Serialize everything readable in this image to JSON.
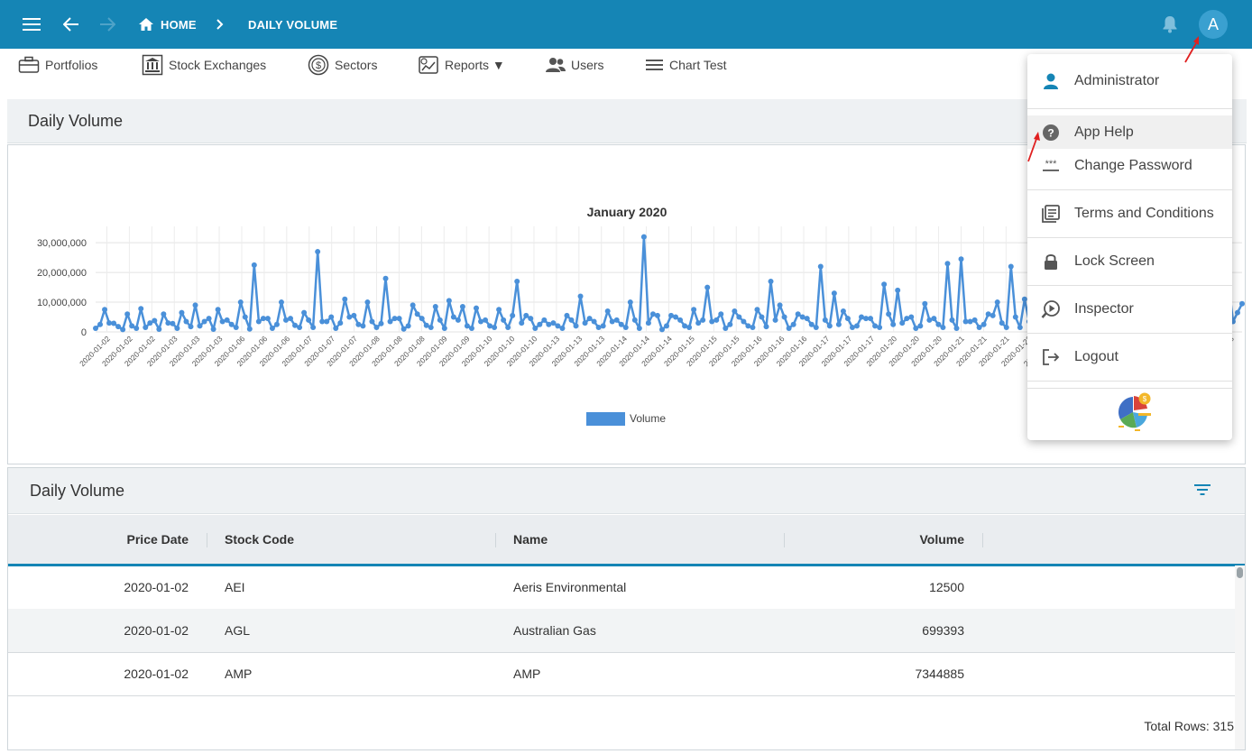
{
  "topbar": {
    "home_label": "HOME",
    "page_label": "DAILY VOLUME",
    "avatar_letter": "A",
    "color": "#1585b5"
  },
  "nav": {
    "items": [
      {
        "label": "Portfolios",
        "icon": "briefcase-icon"
      },
      {
        "label": "Stock Exchanges",
        "icon": "bank-icon"
      },
      {
        "label": "Sectors",
        "icon": "dollar-circle-icon"
      },
      {
        "label": "Reports ▼",
        "icon": "report-chart-icon"
      },
      {
        "label": "Users",
        "icon": "users-icon"
      },
      {
        "label": "Chart Test",
        "icon": "lines-icon"
      }
    ]
  },
  "chart_panel": {
    "title": "Daily Volume"
  },
  "chart_data": {
    "type": "line",
    "title": "January 2020",
    "series": [
      {
        "name": "Volume",
        "color": "#4a90d9",
        "values": [
          1200000,
          2500000,
          7500000,
          3000000,
          2900000,
          1800000,
          800000,
          6000000,
          2000000,
          1200000,
          7800000,
          1500000,
          3000000,
          3800000,
          900000,
          6000000,
          3000000,
          2800000,
          1200000,
          6500000,
          3500000,
          1800000,
          9000000,
          2000000,
          3500000,
          4500000,
          900000,
          7500000,
          3500000,
          4000000,
          2500000,
          1500000,
          10000000,
          5000000,
          1000000,
          22500000,
          3500000,
          4500000,
          4500000,
          1200000,
          2500000,
          10000000,
          4000000,
          4500000,
          2200000,
          1500000,
          6500000,
          4000000,
          1500000,
          27000000,
          3500000,
          3500000,
          5000000,
          1200000,
          3000000,
          11000000,
          5000000,
          5500000,
          2500000,
          2000000,
          10000000,
          3500000,
          1500000,
          2800000,
          18000000,
          3500000,
          4500000,
          4500000,
          1000000,
          2000000,
          9000000,
          6000000,
          4500000,
          2200000,
          1500000,
          8500000,
          4000000,
          1200000,
          10500000,
          5000000,
          4000000,
          8500000,
          2000000,
          1200000,
          8000000,
          3500000,
          4000000,
          2000000,
          1500000,
          7500000,
          4000000,
          1500000,
          5500000,
          17000000,
          3000000,
          5500000,
          4500000,
          1200000,
          2500000,
          4000000,
          2500000,
          3000000,
          2000000,
          1200000,
          5500000,
          4000000,
          2000000,
          12000000,
          3000000,
          4500000,
          3500000,
          1500000,
          2000000,
          7000000,
          3500000,
          4000000,
          2500000,
          1500000,
          10000000,
          4000000,
          1200000,
          32000000,
          3000000,
          6000000,
          5500000,
          800000,
          2000000,
          5500000,
          5000000,
          4000000,
          2000000,
          1500000,
          7500000,
          3000000,
          4000000,
          15000000,
          3500000,
          4000000,
          6000000,
          1200000,
          2500000,
          7000000,
          5000000,
          3500000,
          2000000,
          1500000,
          7500000,
          5000000,
          1800000,
          17000000,
          4000000,
          9000000,
          5000000,
          1200000,
          2500000,
          6000000,
          5000000,
          4500000,
          2500000,
          1500000,
          22000000,
          4000000,
          2000000,
          13000000,
          2500000,
          7000000,
          4500000,
          1500000,
          2000000,
          5000000,
          4500000,
          4500000,
          2000000,
          1500000,
          16000000,
          6000000,
          2500000,
          14000000,
          3000000,
          4500000,
          5000000,
          1200000,
          2000000,
          9500000,
          4000000,
          4500000,
          2500000,
          1500000,
          23000000,
          4000000,
          1200000,
          24500000,
          3500000,
          3500000,
          4000000,
          1500000,
          2500000,
          6000000,
          5500000,
          10000000,
          3000000,
          1500000,
          22000000,
          5000000,
          1500000,
          11000000,
          3500000,
          4500000,
          9000000,
          1500000,
          2000000,
          7000000,
          4000000,
          3500000,
          2500000,
          1500000,
          12500000,
          4500000,
          1500000,
          20000000,
          3000000,
          3500000,
          7000000,
          1200000,
          2500000,
          4000000,
          5000000,
          6000000,
          2500000,
          1500000,
          20500000,
          4000000,
          1200000,
          21000000,
          5000000,
          2500000,
          7000000,
          1500000,
          2200000,
          6000000,
          3000000,
          4000000,
          2500000,
          1200000,
          8000000,
          3500000,
          3000000,
          7000000,
          2500000,
          1500000,
          16500000,
          3500000,
          6500000,
          9500000
        ]
      }
    ],
    "x_tick_labels": [
      "2020-01-02",
      "2020-01-02",
      "2020-01-02",
      "2020-01-03",
      "2020-01-03",
      "2020-01-03",
      "2020-01-06",
      "2020-01-06",
      "2020-01-06",
      "2020-01-07",
      "2020-01-07",
      "2020-01-07",
      "2020-01-08",
      "2020-01-08",
      "2020-01-08",
      "2020-01-09",
      "2020-01-09",
      "2020-01-10",
      "2020-01-10",
      "2020-01-10",
      "2020-01-13",
      "2020-01-13",
      "2020-01-13",
      "2020-01-14",
      "2020-01-14",
      "2020-01-14",
      "2020-01-15",
      "2020-01-15",
      "2020-01-15",
      "2020-01-16",
      "2020-01-16",
      "2020-01-16",
      "2020-01-17",
      "2020-01-17",
      "2020-01-17",
      "2020-01-20",
      "2020-01-20",
      "2020-01-20",
      "2020-01-21",
      "2020-01-21",
      "2020-01-21",
      "2020-01-22",
      "2020-01-22",
      "2020-01-22",
      "2020-01-23",
      "2020-01-23",
      "2020-01-23",
      "2020-01-24",
      "2020-01-24",
      "2020-01-24",
      "2020-01-28"
    ],
    "y_ticks": [
      "0",
      "10,000,000",
      "20,000,000",
      "30,000,000"
    ],
    "ylim": [
      0,
      34000000
    ],
    "grid": true,
    "legend": "bottom-center"
  },
  "grid_panel": {
    "title": "Daily Volume"
  },
  "table": {
    "columns": [
      "Price Date",
      "Stock Code",
      "Name",
      "Volume"
    ],
    "rows": [
      [
        "2020-01-02",
        "AEI",
        "Aeris Environmental",
        "12500"
      ],
      [
        "2020-01-02",
        "AGL",
        "Australian Gas",
        "699393"
      ],
      [
        "2020-01-02",
        "AMP",
        "AMP",
        "7344885"
      ]
    ],
    "footer": "Total Rows: 315"
  },
  "user_menu": {
    "items": [
      {
        "label": "Administrator",
        "icon": "person-icon"
      },
      {
        "label": "App Help",
        "icon": "help-circle-icon"
      },
      {
        "label": "Change Password",
        "icon": "password-icon"
      },
      {
        "label": "Terms and Conditions",
        "icon": "document-list-icon"
      },
      {
        "label": "Lock Screen",
        "icon": "lock-icon"
      },
      {
        "label": "Inspector",
        "icon": "inspector-icon"
      },
      {
        "label": "Logout",
        "icon": "logout-icon"
      }
    ],
    "logo": "pie-chart-logo-icon"
  }
}
